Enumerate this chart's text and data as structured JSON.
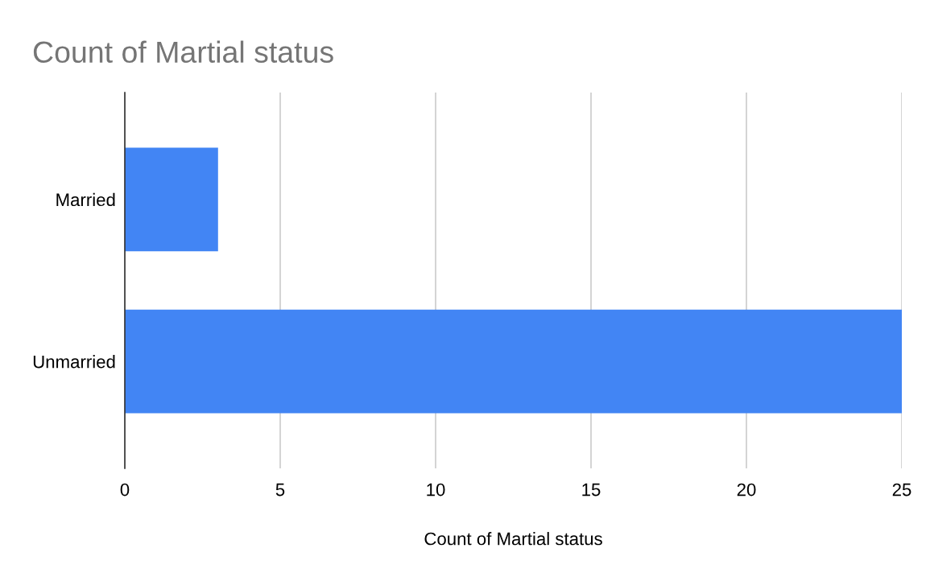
{
  "chart_data": {
    "type": "bar",
    "orientation": "horizontal",
    "title": "Count of Martial status",
    "xlabel": "Count of Martial status",
    "categories": [
      "Married",
      "Unmarried"
    ],
    "values": [
      3,
      25
    ],
    "color": "#4285f4",
    "xlim": [
      0,
      25
    ],
    "xticks": [
      0,
      5,
      10,
      15,
      20,
      25
    ],
    "grid": "x"
  }
}
